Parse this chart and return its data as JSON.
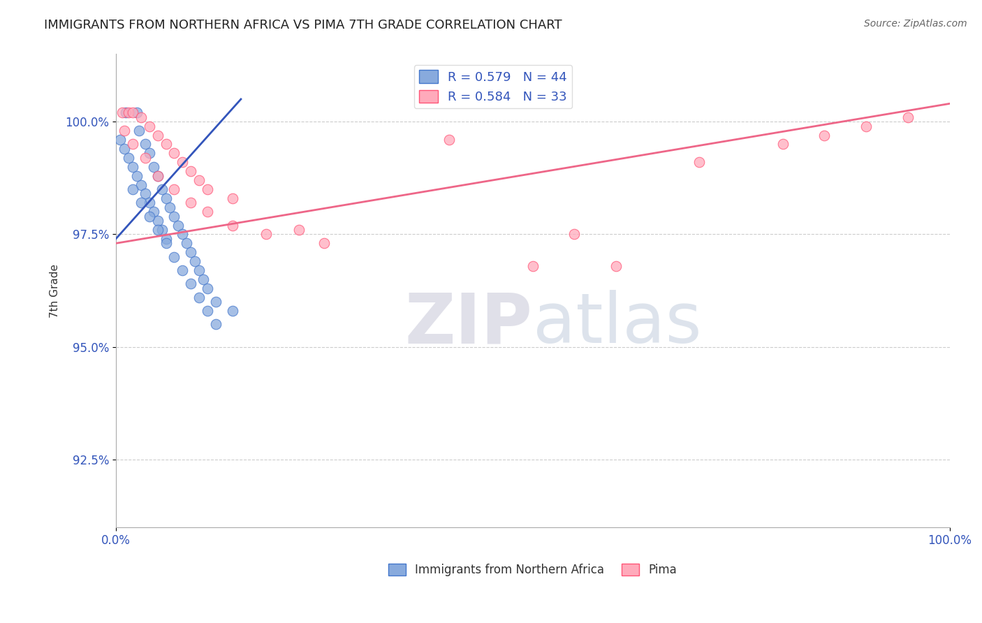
{
  "title": "IMMIGRANTS FROM NORTHERN AFRICA VS PIMA 7TH GRADE CORRELATION CHART",
  "source_text": "Source: ZipAtlas.com",
  "ylabel": "7th Grade",
  "y_tick_labels": [
    "92.5%",
    "95.0%",
    "97.5%",
    "100.0%"
  ],
  "y_tick_values": [
    92.5,
    95.0,
    97.5,
    100.0
  ],
  "xlim": [
    0.0,
    100.0
  ],
  "ylim": [
    91.0,
    101.5
  ],
  "legend_label1": "R = 0.579   N = 44",
  "legend_label2": "R = 0.584   N = 33",
  "legend_label_bottom1": "Immigrants from Northern Africa",
  "legend_label_bottom2": "Pima",
  "blue_color": "#88AADD",
  "pink_color": "#FFAABB",
  "blue_edge_color": "#4477CC",
  "pink_edge_color": "#FF5577",
  "blue_line_color": "#3355BB",
  "pink_line_color": "#EE6688",
  "title_color": "#222222",
  "source_color": "#666666",
  "axis_label_color": "#333333",
  "tick_color": "#3355BB",
  "grid_color": "#CCCCCC",
  "bg_color": "#FFFFFF",
  "blue_scatter_x": [
    1.2,
    2.5,
    2.8,
    3.5,
    4.0,
    4.5,
    5.0,
    5.5,
    6.0,
    6.5,
    7.0,
    7.5,
    8.0,
    8.5,
    9.0,
    9.5,
    10.0,
    10.5,
    11.0,
    12.0,
    14.0,
    0.5,
    1.0,
    1.5,
    2.0,
    2.5,
    3.0,
    3.5,
    4.0,
    4.5,
    5.0,
    5.5,
    6.0,
    2.0,
    3.0,
    4.0,
    5.0,
    6.0,
    7.0,
    8.0,
    9.0,
    10.0,
    11.0,
    12.0
  ],
  "blue_scatter_y": [
    100.2,
    100.2,
    99.8,
    99.5,
    99.3,
    99.0,
    98.8,
    98.5,
    98.3,
    98.1,
    97.9,
    97.7,
    97.5,
    97.3,
    97.1,
    96.9,
    96.7,
    96.5,
    96.3,
    96.0,
    95.8,
    99.6,
    99.4,
    99.2,
    99.0,
    98.8,
    98.6,
    98.4,
    98.2,
    98.0,
    97.8,
    97.6,
    97.4,
    98.5,
    98.2,
    97.9,
    97.6,
    97.3,
    97.0,
    96.7,
    96.4,
    96.1,
    95.8,
    95.5
  ],
  "pink_scatter_x": [
    0.8,
    1.5,
    2.0,
    3.0,
    4.0,
    5.0,
    6.0,
    7.0,
    8.0,
    9.0,
    10.0,
    11.0,
    14.0,
    22.0,
    50.0,
    60.0,
    70.0,
    1.0,
    2.0,
    3.5,
    5.0,
    7.0,
    9.0,
    11.0,
    14.0,
    18.0,
    25.0,
    40.0,
    55.0,
    80.0,
    85.0,
    90.0,
    95.0
  ],
  "pink_scatter_y": [
    100.2,
    100.2,
    100.2,
    100.1,
    99.9,
    99.7,
    99.5,
    99.3,
    99.1,
    98.9,
    98.7,
    98.5,
    98.3,
    97.6,
    96.8,
    96.8,
    99.1,
    99.8,
    99.5,
    99.2,
    98.8,
    98.5,
    98.2,
    98.0,
    97.7,
    97.5,
    97.3,
    99.6,
    97.5,
    99.5,
    99.7,
    99.9,
    100.1
  ],
  "blue_line_x": [
    0.0,
    15.0
  ],
  "blue_line_y": [
    97.4,
    100.5
  ],
  "pink_line_x": [
    0.0,
    100.0
  ],
  "pink_line_y": [
    97.3,
    100.4
  ]
}
